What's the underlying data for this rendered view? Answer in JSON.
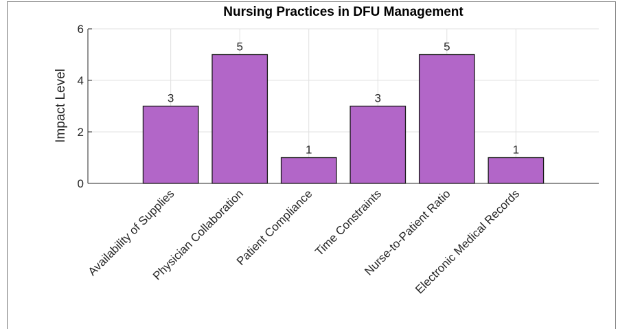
{
  "chart_data": {
    "type": "bar",
    "title": "Nursing Practices in DFU Management",
    "ylabel": "Impact Level",
    "categories": [
      "Availability of Supplies",
      "Physician Collaboration",
      "Patient Compliance",
      "Time Constraints",
      "Nurse-to-Patient Ratio",
      "Electronic Medical Records"
    ],
    "values": [
      3,
      5,
      1,
      3,
      5,
      1
    ],
    "color": "#b266c8",
    "ylim": [
      0,
      6
    ],
    "yticks": [
      0,
      2,
      4,
      6
    ],
    "grid": true
  }
}
